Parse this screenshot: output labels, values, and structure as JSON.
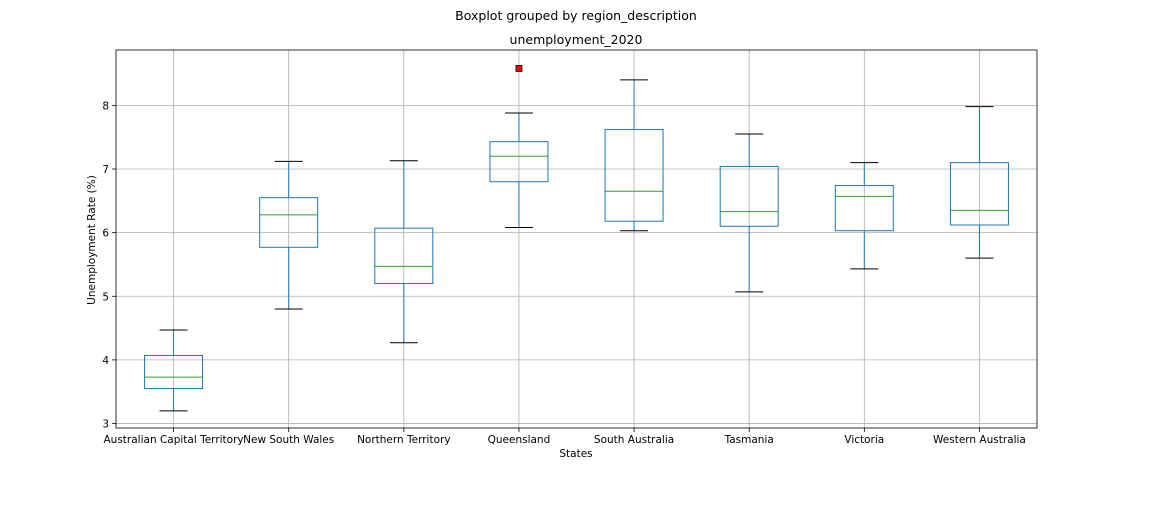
{
  "chart_data": {
    "type": "box",
    "suptitle": "Boxplot grouped by region_description",
    "title": "unemployment_2020",
    "xlabel": "States",
    "ylabel": "Unemployment Rate (%)",
    "ylim": [
      2.93,
      8.87
    ],
    "yticks": [
      3,
      4,
      5,
      6,
      7,
      8
    ],
    "grid": true,
    "box_color": "#1f77b4",
    "median_color": "#2ca02c",
    "flier_color": "#ff0000",
    "categories": [
      "Australian Capital Territory",
      "New South Wales",
      "Northern Territory",
      "Queensland",
      "South Australia",
      "Tasmania",
      "Victoria",
      "Western Australia"
    ],
    "boxes": [
      {
        "whisker_low": 3.2,
        "q1": 3.55,
        "median": 3.73,
        "q3": 4.07,
        "whisker_high": 4.47,
        "outliers": []
      },
      {
        "whisker_low": 4.8,
        "q1": 5.77,
        "median": 6.28,
        "q3": 6.55,
        "whisker_high": 7.12,
        "outliers": []
      },
      {
        "whisker_low": 4.27,
        "q1": 5.2,
        "median": 5.47,
        "q3": 6.07,
        "whisker_high": 7.13,
        "outliers": []
      },
      {
        "whisker_low": 6.08,
        "q1": 6.8,
        "median": 7.2,
        "q3": 7.43,
        "whisker_high": 7.88,
        "outliers": [
          8.58
        ]
      },
      {
        "whisker_low": 6.03,
        "q1": 6.18,
        "median": 6.65,
        "q3": 7.62,
        "whisker_high": 8.4,
        "outliers": []
      },
      {
        "whisker_low": 5.07,
        "q1": 6.1,
        "median": 6.33,
        "q3": 7.04,
        "whisker_high": 7.55,
        "outliers": []
      },
      {
        "whisker_low": 5.43,
        "q1": 6.03,
        "median": 6.57,
        "q3": 6.74,
        "whisker_high": 7.1,
        "outliers": []
      },
      {
        "whisker_low": 5.6,
        "q1": 6.12,
        "median": 6.35,
        "q3": 7.1,
        "whisker_high": 7.98,
        "outliers": []
      }
    ]
  }
}
